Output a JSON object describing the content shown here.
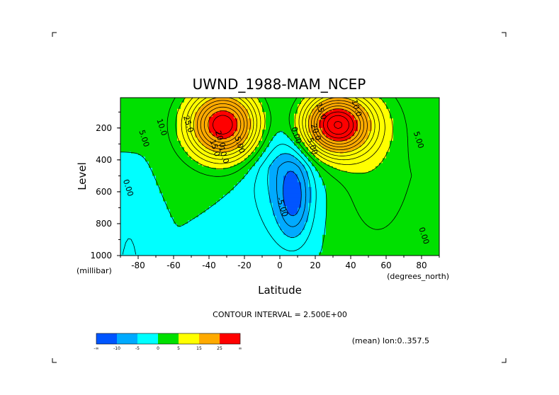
{
  "chart_data": {
    "type": "contour",
    "title": "UWND_1988-MAM_NCEP",
    "xlabel": "Latitude",
    "ylabel": "Level",
    "x_units": "(degrees_north)",
    "y_units": "(millibar)",
    "xlim": [
      -90,
      90
    ],
    "ylim": [
      1000,
      10
    ],
    "x_ticks": [
      "-80",
      "-60",
      "-40",
      "-20",
      "0",
      "20",
      "40",
      "60",
      "80"
    ],
    "x_tick_values": [
      -80,
      -60,
      -40,
      -20,
      0,
      20,
      40,
      60,
      80
    ],
    "y_ticks": [
      "200",
      "400",
      "600",
      "800",
      "1000"
    ],
    "y_tick_values": [
      200,
      400,
      600,
      800,
      1000
    ],
    "contour_interval_text": "CONTOUR INTERVAL = 2.500E+00",
    "footer_text": "(mean) lon:0..357.5",
    "contour_labels": [
      {
        "text": "10.0",
        "lat": -68,
        "p": 200
      },
      {
        "text": "5.00",
        "lat": -78,
        "p": 270
      },
      {
        "text": "25.0",
        "lat": -53,
        "p": 180
      },
      {
        "text": "20.0",
        "lat": -35,
        "p": 275
      },
      {
        "text": "15.0",
        "lat": -38,
        "p": 330
      },
      {
        "text": "10.0",
        "lat": -33,
        "p": 375
      },
      {
        "text": "5.00",
        "lat": -24,
        "p": 310
      },
      {
        "text": "0.00",
        "lat": -87,
        "p": 580
      },
      {
        "text": "0.00",
        "lat": 8,
        "p": 250
      },
      {
        "text": "5.00",
        "lat": 17,
        "p": 320
      },
      {
        "text": "-5.00",
        "lat": 0,
        "p": 700
      },
      {
        "text": "15.0",
        "lat": 22,
        "p": 100
      },
      {
        "text": "10.0",
        "lat": 42,
        "p": 80
      },
      {
        "text": "20.0",
        "lat": 19,
        "p": 230
      },
      {
        "text": "5.00",
        "lat": 77,
        "p": 280
      },
      {
        "text": "0.00",
        "lat": 80,
        "p": 880
      }
    ],
    "colorbar": {
      "colors": [
        "#0055ff",
        "#00aaff",
        "#00ffff",
        "#00e000",
        "#ffff00",
        "#ffaa00",
        "#ff0000"
      ],
      "labels": [
        "-∞",
        "-10",
        "-5",
        "0",
        "5",
        "15",
        "25",
        "∞"
      ]
    },
    "field": {
      "jets": [
        {
          "lat": -32,
          "p": 180,
          "value": 30
        },
        {
          "lat": 32,
          "p": 180,
          "value": 32
        }
      ],
      "easterly_min": {
        "lat": 8,
        "p": 650,
        "value": -8
      }
    }
  }
}
